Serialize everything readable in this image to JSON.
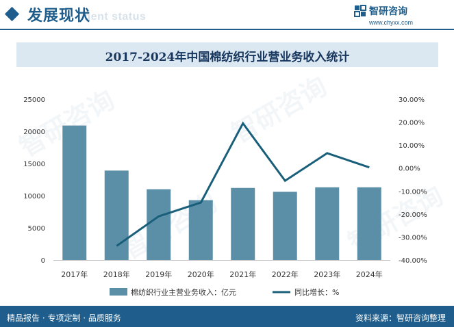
{
  "header": {
    "title": "发展现状",
    "subtitle": "ment status",
    "icon": "diamond-icon"
  },
  "logo": {
    "name": "智研咨询",
    "url": "www.chyxx.com",
    "icon": "zhiyan-logo-icon"
  },
  "watermark": "智研咨询",
  "footer": {
    "left": "精品报告 · 专项定制 · 品质服务",
    "right": "资料来源：智研咨询整理"
  },
  "colors": {
    "brand": "#1f5e8c",
    "bar": "#5b8fa8",
    "line": "#1a5f7a",
    "title_band": "#dbe7f1"
  },
  "chart_data": {
    "type": "bar",
    "title": "2017-2024年中国棉纺织行业营业务收入统计",
    "categories": [
      "2017年",
      "2018年",
      "2019年",
      "2020年",
      "2021年",
      "2022年",
      "2023年",
      "2024年"
    ],
    "series": [
      {
        "name": "棉纺织行业主营业务收入：亿元",
        "type": "bar",
        "axis": "left",
        "values": [
          20900,
          13900,
          11000,
          9300,
          11200,
          10600,
          11300,
          11300
        ]
      },
      {
        "name": "同比增长：%",
        "type": "line",
        "axis": "right",
        "values": [
          null,
          -33.9,
          -21.0,
          -15.0,
          19.5,
          -5.5,
          6.5,
          0.3
        ]
      }
    ],
    "y_left": {
      "min": 0,
      "max": 25000,
      "ticks": [
        "0",
        "5000",
        "10000",
        "15000",
        "20000",
        "25000"
      ]
    },
    "y_right": {
      "min": -40,
      "max": 30,
      "ticks": [
        "-40.00%",
        "-30.00%",
        "-20.00%",
        "-10.00%",
        "0.00%",
        "10.00%",
        "20.00%",
        "30.00%"
      ]
    },
    "grid": false,
    "legend": "bottom"
  }
}
